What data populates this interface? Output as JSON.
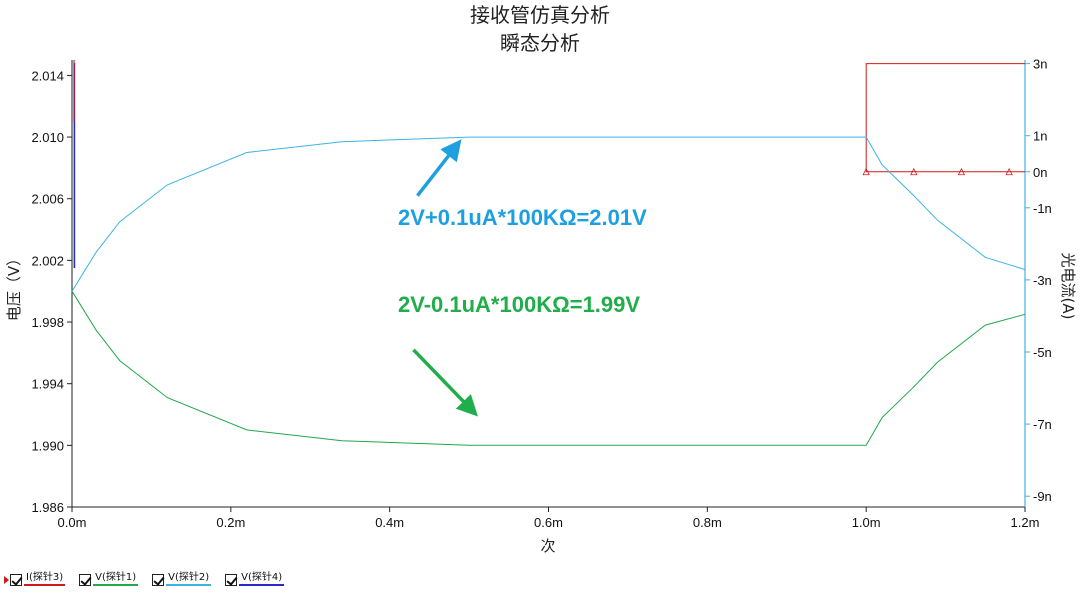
{
  "chart_data": {
    "type": "line",
    "title": "接收管仿真分析",
    "subtitle": "瞬态分析",
    "xlabel": "次",
    "ylabel_left": "电压（V）",
    "ylabel_right": "光电流(A)",
    "xlim": [
      0,
      0.0012
    ],
    "ylim_left": [
      1.986,
      2.015
    ],
    "ylim_right": [
      -9.3e-09,
      3.1e-09
    ],
    "x_tick_labels": [
      "0.0m",
      "0.2m",
      "0.4m",
      "0.6m",
      "0.8m",
      "1.0m",
      "1.2m"
    ],
    "x_ticks": [
      0,
      0.0002,
      0.0004,
      0.0006,
      0.0008,
      0.001,
      0.0012
    ],
    "y_left_tick_labels": [
      "1.986",
      "1.990",
      "1.994",
      "1.998",
      "2.002",
      "2.006",
      "2.010",
      "2.014"
    ],
    "y_left_ticks": [
      1.986,
      1.99,
      1.994,
      1.998,
      2.002,
      2.006,
      2.01,
      2.014
    ],
    "y_right_tick_labels": [
      "-9n",
      "-7n",
      "-5n",
      "-3n",
      "-1n",
      "0n",
      "1n",
      "3n"
    ],
    "y_right_ticks": [
      -9e-09,
      -7e-09,
      -5e-09,
      -3e-09,
      -1e-09,
      0,
      1e-09,
      3e-09
    ],
    "grid": false,
    "legend_position": "bottom-left",
    "series": [
      {
        "name": "I(探针3)",
        "axis": "right",
        "color": "#d01a1a",
        "marker": "triangle",
        "x": [
          0.00125,
          0.00125,
          0.001,
          0.001,
          0.00106,
          0.00112,
          0.00118,
          0.0012
        ],
        "y": [
          3e-09,
          3e-09,
          3e-09,
          0,
          0,
          0,
          0,
          0
        ]
      },
      {
        "name": "V(探针1)",
        "axis": "left",
        "color": "#22a84a",
        "x": [
          0,
          3e-05,
          6e-05,
          0.00012,
          0.00022,
          0.00034,
          0.0005,
          0.0007,
          0.001,
          0.00102,
          0.00106,
          0.00109,
          0.00115,
          0.0012
        ],
        "y": [
          2.0,
          1.9975,
          1.9955,
          1.9931,
          1.991,
          1.9903,
          1.99,
          1.99,
          1.99,
          1.9918,
          1.9938,
          1.9954,
          1.9978,
          1.9985
        ]
      },
      {
        "name": "V(探针2)",
        "axis": "left",
        "color": "#3db4e6",
        "x": [
          0,
          3e-05,
          6e-05,
          0.00012,
          0.00022,
          0.00034,
          0.0005,
          0.0007,
          0.001,
          0.00102,
          0.00106,
          0.00109,
          0.00115,
          0.0012
        ],
        "y": [
          2.0,
          2.0025,
          2.0045,
          2.0069,
          2.009,
          2.0097,
          2.01,
          2.01,
          2.01,
          2.0082,
          2.0062,
          2.0046,
          2.0022,
          2.0014
        ]
      },
      {
        "name": "V(探针4)",
        "axis": "left",
        "color": "#2a2ac8",
        "x": [
          3e-06,
          3e-06
        ],
        "y": [
          2.0015,
          2.0148
        ]
      }
    ],
    "annotations": [
      {
        "text": "2V+0.1uA*100KΩ=2.01V",
        "color": "#1ea0e0",
        "arrow_from": [
          0.000435,
          2.0062
        ],
        "arrow_to": [
          0.000485,
          2.0095
        ]
      },
      {
        "text": "2V-0.1uA*100KΩ=1.99V",
        "color": "#1fae4a",
        "arrow_from": [
          0.00043,
          1.9962
        ],
        "arrow_to": [
          0.000505,
          1.9922
        ]
      }
    ]
  },
  "legend": [
    {
      "label": "I(探针3)",
      "color": "#d01a1a"
    },
    {
      "label": "V(探针1)",
      "color": "#22a84a"
    },
    {
      "label": "V(探针2)",
      "color": "#3db4e6"
    },
    {
      "label": "V(探针4)",
      "color": "#2a2ac8"
    }
  ]
}
